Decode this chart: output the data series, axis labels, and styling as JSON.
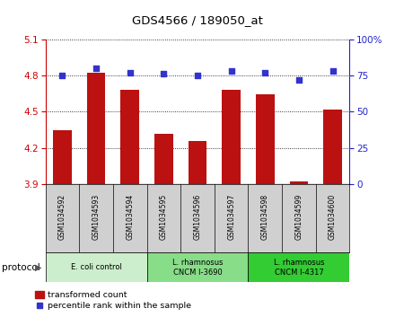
{
  "title": "GDS4566 / 189050_at",
  "samples": [
    "GSM1034592",
    "GSM1034593",
    "GSM1034594",
    "GSM1034595",
    "GSM1034596",
    "GSM1034597",
    "GSM1034598",
    "GSM1034599",
    "GSM1034600"
  ],
  "transformed_counts": [
    4.35,
    4.82,
    4.68,
    4.32,
    4.26,
    4.68,
    4.64,
    3.92,
    4.52
  ],
  "percentile_ranks": [
    75,
    80,
    77,
    76,
    75,
    78,
    77,
    72,
    78
  ],
  "ylim_left": [
    3.9,
    5.1
  ],
  "ylim_right": [
    0,
    100
  ],
  "yticks_left": [
    3.9,
    4.2,
    4.5,
    4.8,
    5.1
  ],
  "yticks_right": [
    0,
    25,
    50,
    75,
    100
  ],
  "bar_color": "#bb1111",
  "dot_color": "#3333cc",
  "group_colors": [
    "#cceecc",
    "#88dd88",
    "#33cc33"
  ],
  "group_labels": [
    "E. coli control",
    "L. rhamnosus\nCNCM I-3690",
    "L. rhamnosus\nCNCM I-4317"
  ],
  "group_ranges": [
    [
      0,
      2
    ],
    [
      3,
      5
    ],
    [
      6,
      8
    ]
  ],
  "legend_bar_label": "transformed count",
  "legend_dot_label": "percentile rank within the sample",
  "left_axis_color": "#cc0000",
  "right_axis_color": "#2222cc",
  "sample_box_color": "#d0d0d0"
}
